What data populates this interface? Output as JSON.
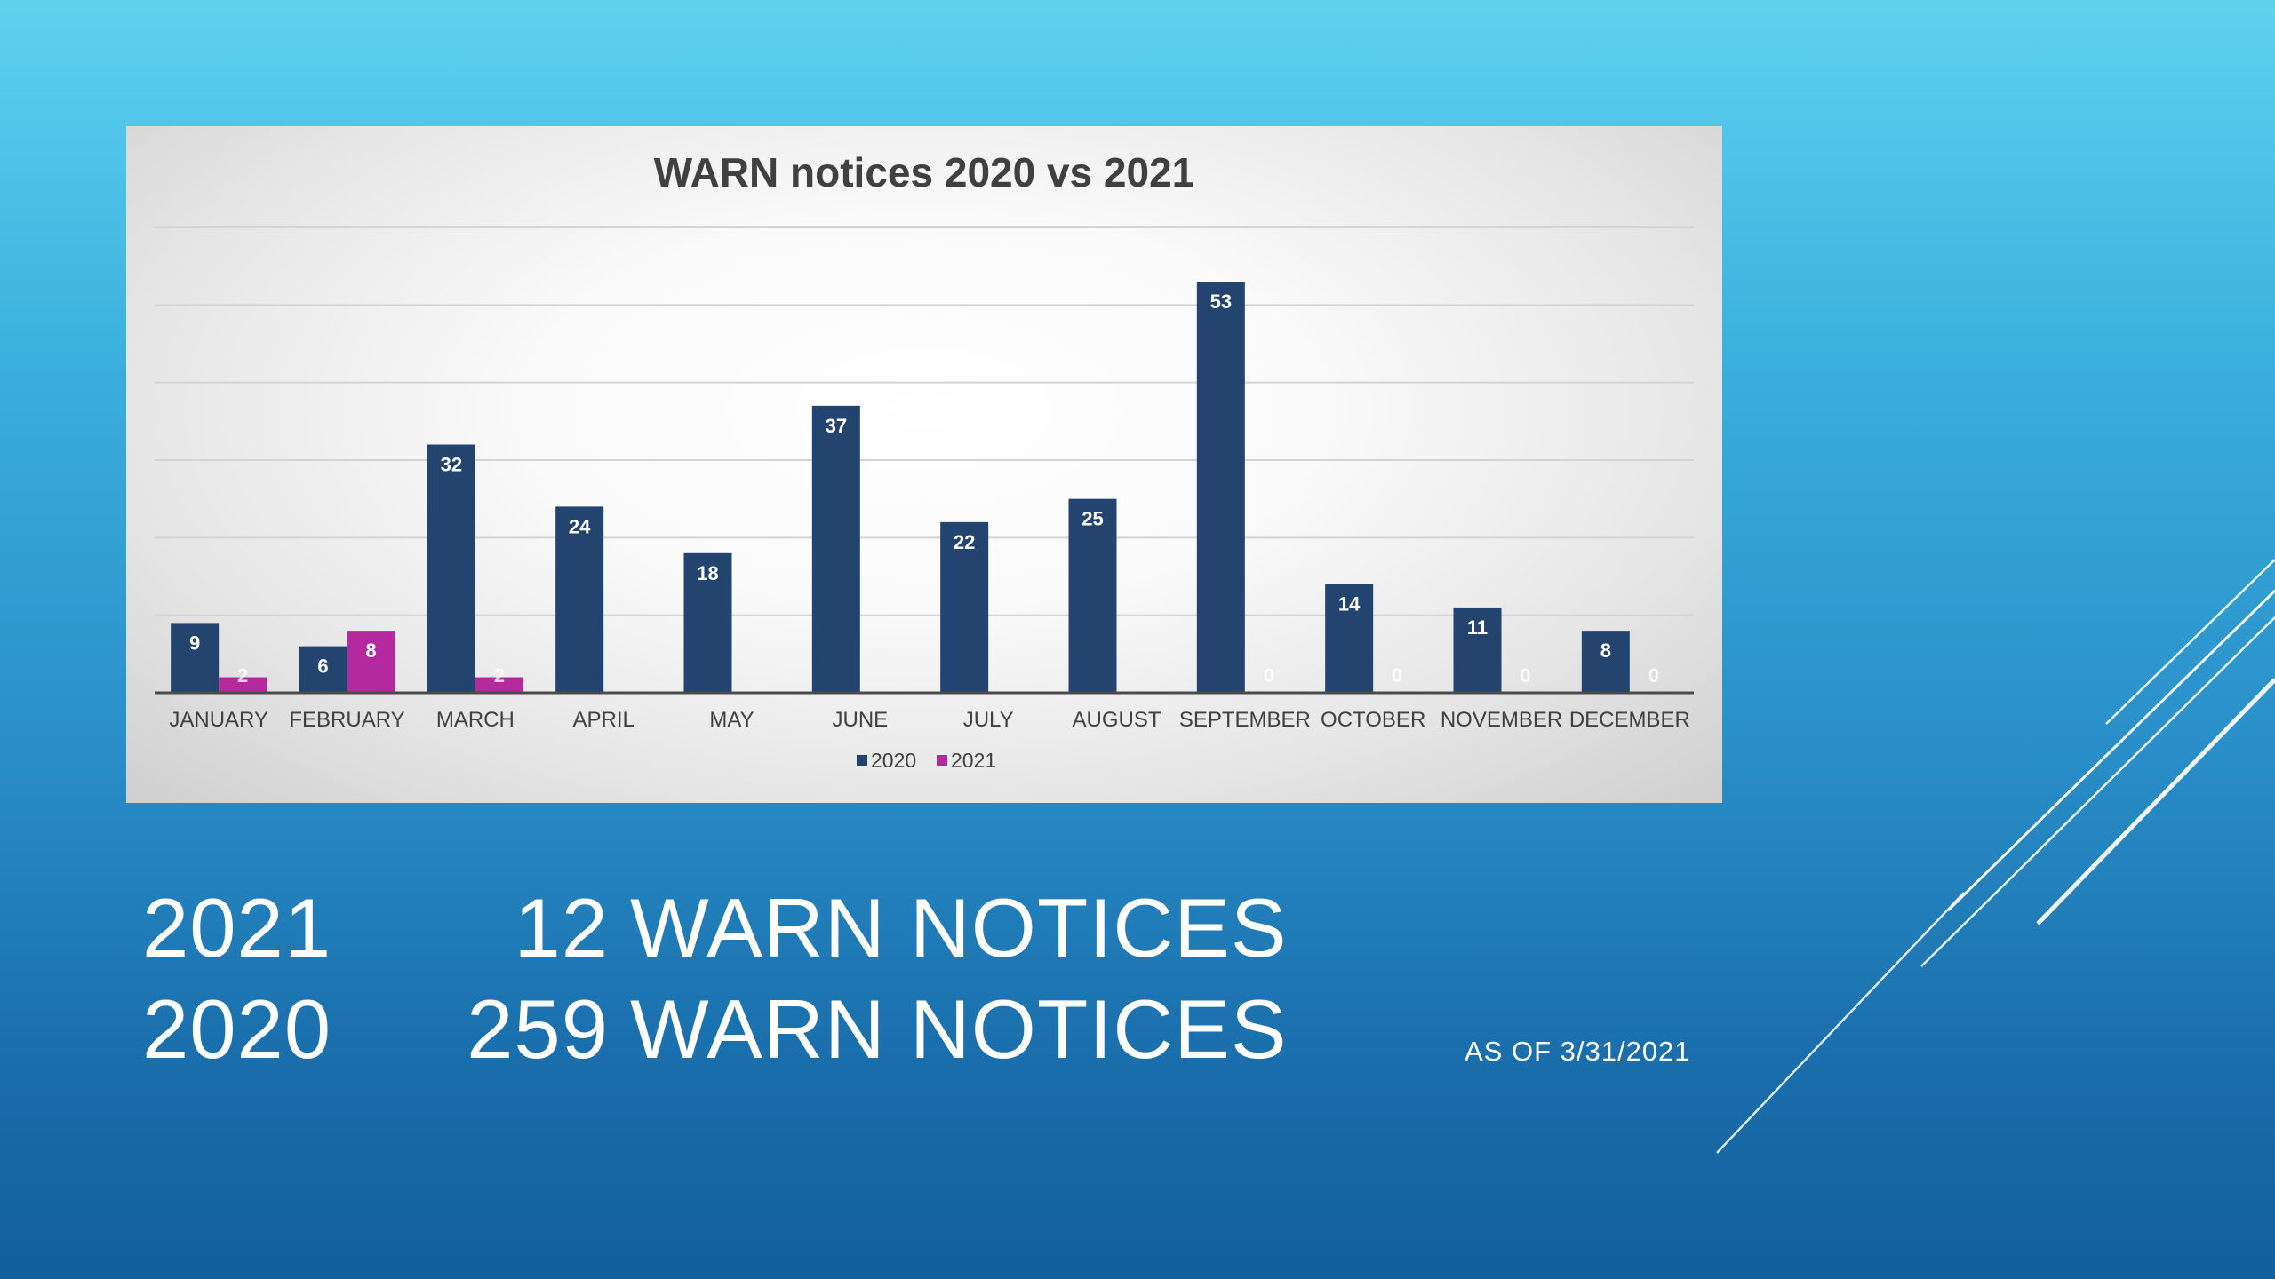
{
  "chart_data": {
    "type": "bar",
    "title": "WARN notices 2020 vs 2021",
    "categories": [
      "JANUARY",
      "FEBRUARY",
      "MARCH",
      "APRIL",
      "MAY",
      "JUNE",
      "JULY",
      "AUGUST",
      "SEPTEMBER",
      "OCTOBER",
      "NOVEMBER",
      "DECEMBER"
    ],
    "series": [
      {
        "name": "2020",
        "color": "#23446e",
        "values": [
          9,
          6,
          32,
          24,
          18,
          37,
          22,
          25,
          53,
          14,
          11,
          8
        ]
      },
      {
        "name": "2021",
        "color": "#b5299f",
        "values": [
          2,
          8,
          2,
          null,
          null,
          null,
          null,
          null,
          0,
          0,
          0,
          0
        ]
      }
    ],
    "ylim": [
      0,
      60
    ],
    "grid": true,
    "legend_position": "bottom",
    "xlabel": "",
    "ylabel": ""
  },
  "summary": {
    "line1": {
      "year": "2021",
      "count": "12",
      "label": "WARN NOTICES"
    },
    "line2": {
      "year": "2020",
      "count": "259",
      "label": "WARN NOTICES"
    }
  },
  "note": "AS OF 3/31/2021",
  "colors": {
    "background_top": "#5fd2ef",
    "background_bottom": "#125f9c",
    "series_2020": "#23446e",
    "series_2021": "#b5299f",
    "text_light": "#ffffff"
  }
}
